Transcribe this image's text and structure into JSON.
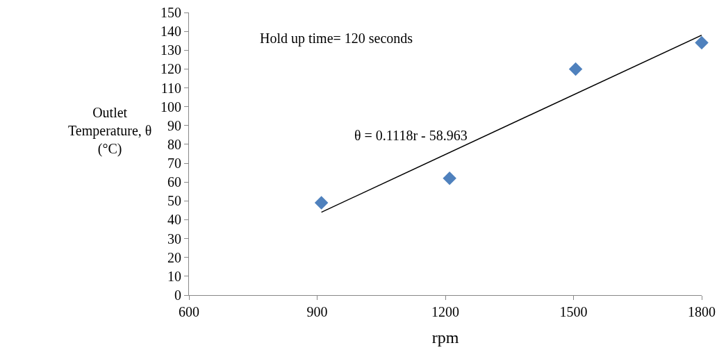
{
  "chart_data": {
    "type": "scatter",
    "xlabel": "rpm",
    "ylabel": "Outlet\nTemperature, θ\n(°C)",
    "xlim": [
      600,
      1800
    ],
    "xticks": [
      600,
      900,
      1200,
      1500,
      1800
    ],
    "ylim": [
      0,
      150
    ],
    "yticks": [
      0,
      10,
      20,
      30,
      40,
      50,
      60,
      70,
      80,
      90,
      100,
      110,
      120,
      130,
      140,
      150
    ],
    "grid": false,
    "marker": "diamond",
    "series": [
      {
        "color": "#4f81bd",
        "x": [
          910,
          1210,
          1505,
          1800
        ],
        "values": [
          49,
          62,
          120,
          134
        ]
      },
      {
        "type": "line",
        "color": "#000000",
        "line_style": "solid",
        "marker": "none",
        "x": [
          910,
          1800
        ],
        "values": [
          44,
          138
        ]
      }
    ],
    "annotations": [
      "Hold up time= 120 seconds",
      "θ = 0.1118r - 58.963"
    ]
  }
}
